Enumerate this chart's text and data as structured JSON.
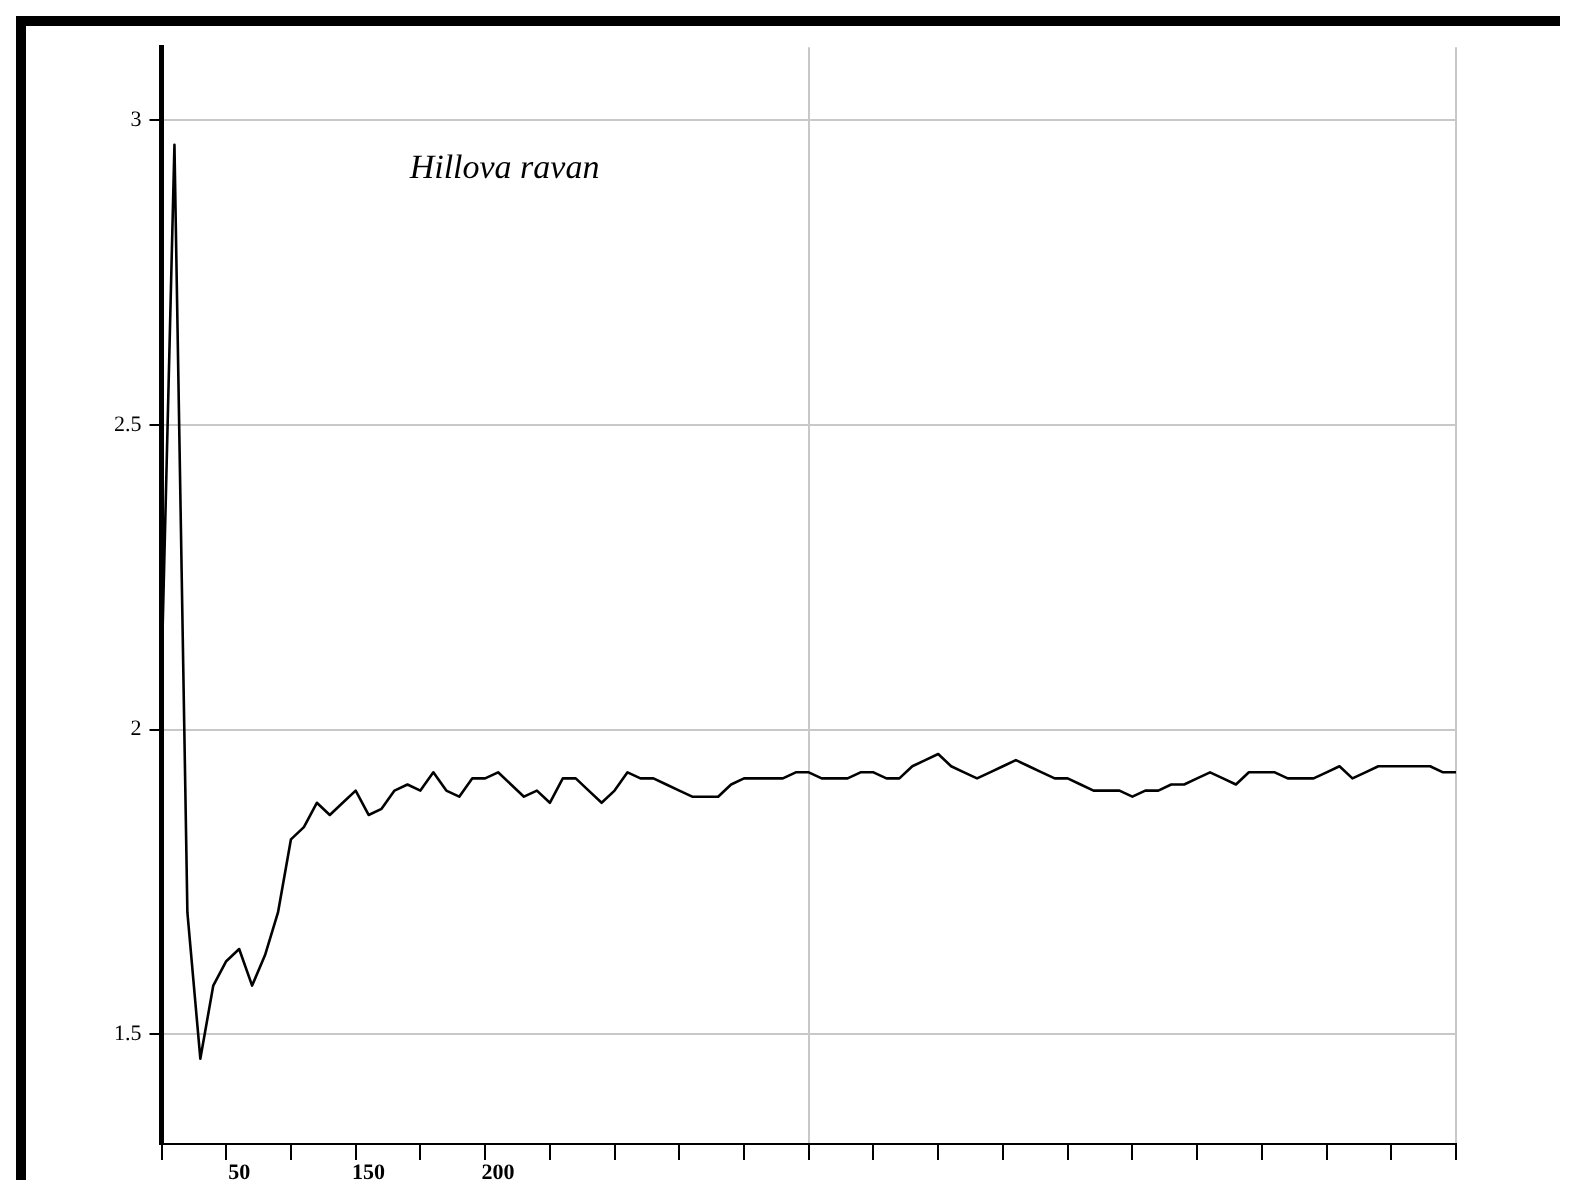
{
  "chart_data": {
    "type": "line",
    "title": "Hillova ravan",
    "categories": [
      null,
      null,
      null,
      null,
      null,
      null,
      null,
      null,
      null,
      null,
      null,
      null,
      null,
      null,
      null,
      null,
      null,
      null,
      null,
      null,
      null,
      null,
      null,
      null,
      null,
      null,
      null,
      null,
      null,
      null,
      null,
      null,
      null,
      null,
      null,
      null,
      null,
      null,
      null,
      null,
      null,
      null,
      null,
      null,
      null,
      null,
      null,
      null,
      null,
      null,
      null,
      null,
      null,
      null,
      null,
      null,
      null,
      null,
      null,
      null,
      null,
      null,
      null,
      null,
      null,
      null,
      null,
      null,
      null,
      null,
      null,
      null,
      null,
      null,
      null,
      null,
      null,
      null,
      null,
      null,
      null,
      null,
      null,
      null,
      null,
      null,
      null,
      null,
      null,
      null,
      null,
      null,
      null,
      null,
      null,
      null,
      null,
      null,
      null,
      null,
      null
    ],
    "series": [
      {
        "color": "#000000",
        "values": [
          2.09,
          2.96,
          1.7,
          1.46,
          1.58,
          1.62,
          1.64,
          1.58,
          1.63,
          1.7,
          1.82,
          1.84,
          1.88,
          1.86,
          1.88,
          1.9,
          1.86,
          1.87,
          1.9,
          1.91,
          1.9,
          1.93,
          1.9,
          1.89,
          1.92,
          1.92,
          1.93,
          1.91,
          1.89,
          1.9,
          1.88,
          1.92,
          1.92,
          1.9,
          1.88,
          1.9,
          1.93,
          1.92,
          1.92,
          1.91,
          1.9,
          1.89,
          1.89,
          1.89,
          1.91,
          1.92,
          1.92,
          1.92,
          1.92,
          1.93,
          1.93,
          1.92,
          1.92,
          1.92,
          1.93,
          1.93,
          1.92,
          1.92,
          1.94,
          1.95,
          1.96,
          1.94,
          1.93,
          1.92,
          1.93,
          1.94,
          1.95,
          1.94,
          1.93,
          1.92,
          1.92,
          1.91,
          1.9,
          1.9,
          1.9,
          1.89,
          1.9,
          1.9,
          1.91,
          1.91,
          1.92,
          1.93,
          1.92,
          1.91,
          1.93,
          1.93,
          1.93,
          1.92,
          1.92,
          1.92,
          1.93,
          1.94,
          1.92,
          1.93,
          1.94,
          1.94,
          1.94,
          1.94,
          1.94,
          1.93,
          1.93
        ]
      }
    ],
    "ylim": [
      1.32,
      3.12
    ],
    "yticks": [
      1.5,
      2,
      2.5,
      3
    ],
    "tick_labels": "y",
    "grid": true,
    "legend": false,
    "marker": "none",
    "line_style": "solid",
    "annotations": [
      "50",
      "150",
      "200"
    ]
  }
}
